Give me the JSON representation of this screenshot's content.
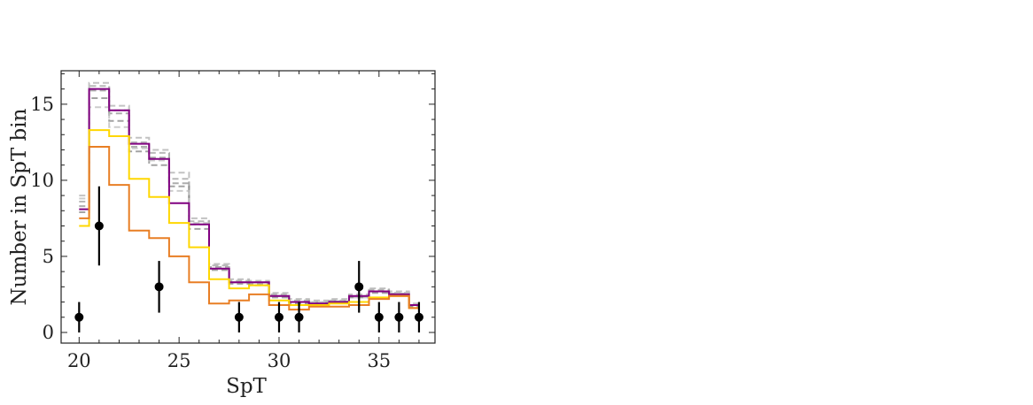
{
  "chart_data": {
    "type": "line",
    "xlabel": "SpT",
    "ylabel": "Number in SpT bin",
    "xlim": [
      19.1,
      37.8
    ],
    "ylim": [
      -0.7,
      17.2
    ],
    "xticks": [
      20,
      25,
      30,
      35
    ],
    "yticks": [
      0,
      5,
      10,
      15
    ],
    "grid": false,
    "bin_edges": [
      20,
      20.5,
      21.5,
      22.5,
      23.5,
      24.5,
      25.5,
      26.5,
      27.5,
      28.5,
      29.5,
      30.5,
      31.5,
      32.5,
      33.5,
      34.5,
      35.5,
      36.5,
      37
    ],
    "series": [
      {
        "color": "#b3b3b3",
        "style": "dashed",
        "values": [
          9.0,
          16.4,
          14.9,
          12.8,
          12.0,
          10.5,
          7.5,
          4.5,
          3.5,
          3.4,
          2.6,
          2.2,
          2.1,
          2.2,
          2.5,
          2.9,
          2.7,
          1.9
        ]
      },
      {
        "color": "#a6a6a6",
        "style": "dashed",
        "values": [
          8.6,
          16.2,
          14.6,
          12.5,
          11.8,
          10.1,
          7.3,
          4.4,
          3.4,
          3.3,
          2.5,
          2.1,
          2.0,
          2.1,
          2.4,
          2.8,
          2.6,
          1.8
        ]
      },
      {
        "color": "#999999",
        "style": "dashed",
        "values": [
          8.3,
          15.9,
          14.4,
          12.2,
          11.5,
          9.8,
          7.1,
          4.3,
          3.3,
          3.2,
          2.4,
          2.0,
          1.95,
          2.05,
          2.35,
          2.7,
          2.55,
          1.75
        ]
      },
      {
        "color": "#8c8c8c",
        "style": "dashed",
        "values": [
          7.9,
          15.4,
          13.9,
          11.9,
          11.0,
          9.6,
          6.8,
          4.1,
          3.2,
          3.1,
          2.3,
          1.9,
          1.9,
          2.0,
          2.3,
          2.6,
          2.5,
          1.7
        ]
      },
      {
        "color": "#bfbfbf",
        "style": "dashed",
        "values": [
          8.8,
          14.8,
          13.5,
          12.1,
          11.3,
          9.3,
          7.2,
          4.2,
          3.3,
          3.3,
          2.4,
          2.0,
          2.0,
          2.0,
          2.3,
          2.7,
          2.6,
          1.8
        ]
      },
      {
        "color": "#800080",
        "style": "solid",
        "values": [
          8.1,
          16.0,
          14.6,
          12.4,
          11.4,
          8.5,
          7.1,
          4.2,
          3.3,
          3.3,
          2.4,
          2.0,
          1.9,
          2.0,
          2.4,
          2.7,
          2.5,
          1.8
        ]
      },
      {
        "color": "#ffd700",
        "style": "solid",
        "values": [
          7.0,
          13.3,
          12.9,
          10.1,
          8.9,
          7.2,
          5.6,
          3.5,
          2.9,
          3.1,
          2.1,
          1.8,
          1.8,
          1.9,
          2.0,
          2.3,
          2.4,
          1.6
        ]
      },
      {
        "color": "#e87e24",
        "style": "solid",
        "values": [
          7.5,
          12.2,
          9.7,
          6.7,
          6.2,
          5.0,
          3.3,
          1.9,
          2.1,
          2.5,
          1.8,
          1.5,
          1.7,
          1.7,
          1.8,
          2.2,
          2.4,
          1.6
        ]
      }
    ],
    "observed": {
      "color": "#000000",
      "x": [
        20,
        21,
        24,
        28,
        30,
        31,
        34,
        35,
        36,
        37
      ],
      "y": [
        1,
        7,
        3,
        1,
        1,
        1,
        3,
        1,
        1,
        1
      ],
      "yerr_low": [
        1,
        2.6,
        1.7,
        1,
        1,
        1,
        1.7,
        1,
        1,
        1
      ],
      "yerr_high": [
        1,
        2.6,
        1.7,
        1,
        1,
        1,
        1.7,
        1,
        1,
        1
      ]
    }
  }
}
